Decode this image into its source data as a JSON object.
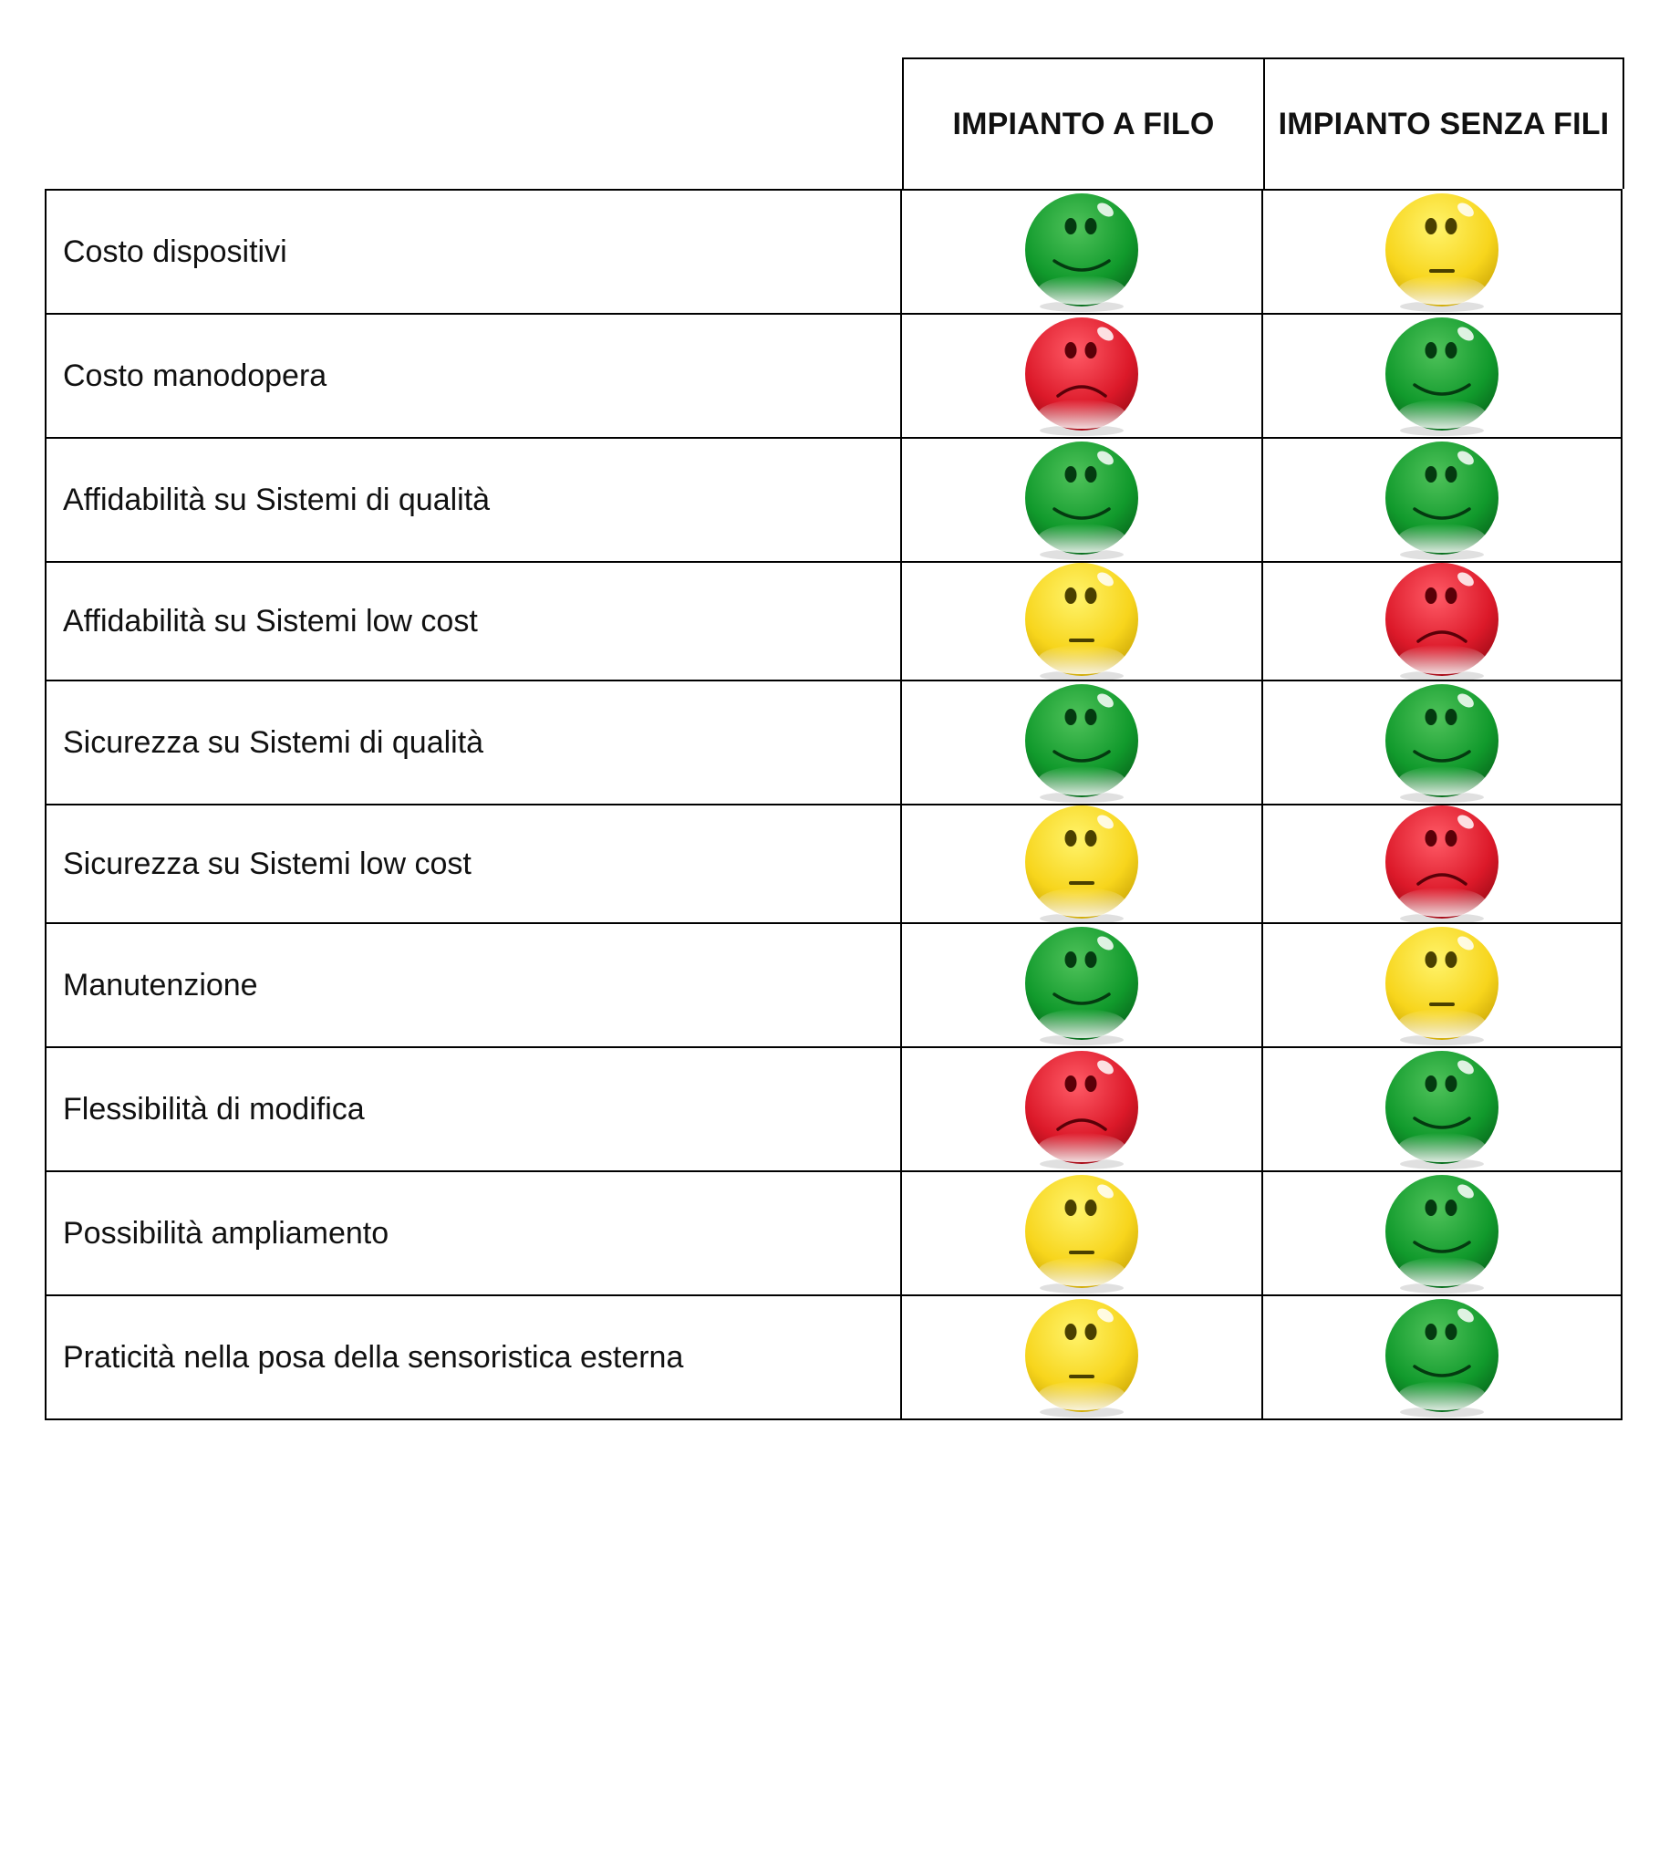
{
  "table": {
    "columns": [
      "IMPIANTO A FILO",
      "IMPIANTO SENZA FILI"
    ],
    "rows": [
      {
        "label": "Costo dispositivi",
        "ratings": [
          "good",
          "neutral"
        ]
      },
      {
        "label": "Costo manodopera",
        "ratings": [
          "bad",
          "good"
        ]
      },
      {
        "label": "Affidabilità su Sistemi di qualità",
        "ratings": [
          "good",
          "good"
        ]
      },
      {
        "label": "Affidabilità su Sistemi low cost",
        "ratings": [
          "neutral",
          "bad"
        ]
      },
      {
        "label": "Sicurezza su Sistemi di qualità",
        "ratings": [
          "good",
          "good"
        ]
      },
      {
        "label": "Sicurezza su Sistemi low cost",
        "ratings": [
          "neutral",
          "bad"
        ]
      },
      {
        "label": "Manutenzione",
        "ratings": [
          "good",
          "neutral"
        ]
      },
      {
        "label": "Flessibilità di modifica",
        "ratings": [
          "bad",
          "good"
        ]
      },
      {
        "label": "Possibilità ampliamento",
        "ratings": [
          "neutral",
          "good"
        ]
      },
      {
        "label": "Praticità nella posa della sensoristica esterna",
        "ratings": [
          "neutral",
          "good"
        ]
      }
    ]
  },
  "rating_styles": {
    "good": {
      "icon": "happy-face-icon",
      "light": "#4fc25a",
      "base": "#119a2c",
      "dark": "#07651b",
      "mouth": "smile"
    },
    "neutral": {
      "icon": "neutral-face-icon",
      "light": "#fff36a",
      "base": "#f7d51c",
      "dark": "#c9a406",
      "mouth": "flat"
    },
    "bad": {
      "icon": "sad-face-icon",
      "light": "#ff5a66",
      "base": "#dc1929",
      "dark": "#9c0a16",
      "mouth": "frown"
    }
  }
}
